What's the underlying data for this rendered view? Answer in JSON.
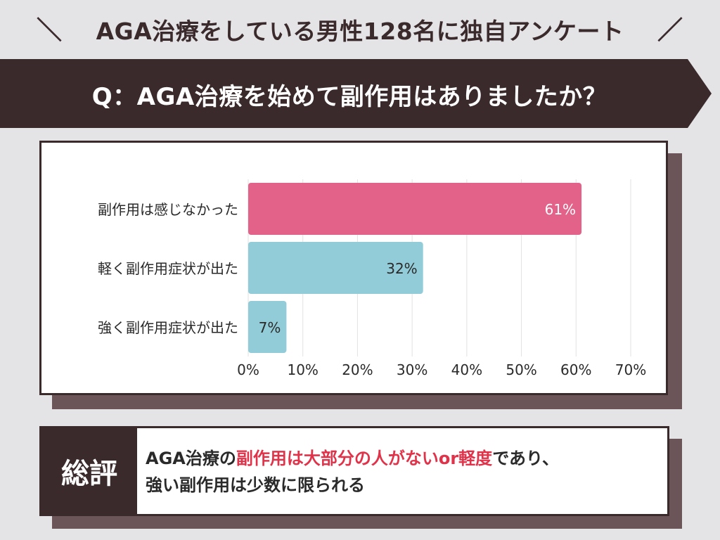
{
  "header": {
    "slash_left": "＼",
    "title": "AGA治療をしている男性128名に独自アンケート",
    "slash_right": "／"
  },
  "question": {
    "text": "Q：AGA治療を始めて副作用はありましたか？"
  },
  "chart_data": {
    "type": "bar",
    "orientation": "horizontal",
    "categories": [
      "副作用は感じなかった",
      "軽く副作用症状が出た",
      "強く副作用症状が出た"
    ],
    "values": [
      61,
      32,
      7
    ],
    "value_labels": [
      "61%",
      "32%",
      "7%"
    ],
    "bar_colors": [
      "#e2628a",
      "#92ccd8",
      "#92ccd8"
    ],
    "x_ticks": [
      "0%",
      "10%",
      "20%",
      "30%",
      "40%",
      "50%",
      "60%",
      "70%"
    ],
    "xlim": [
      0,
      70
    ],
    "grid": true,
    "title": "",
    "xlabel": "",
    "ylabel": ""
  },
  "summary": {
    "label": "総評",
    "line1_prefix": "AGA治療の",
    "line1_highlight": "副作用は大部分の人がないor軽度",
    "line1_suffix": "であり、",
    "line2": "強い副作用は少数に限られる"
  },
  "colors": {
    "dark": "#3a2a2c",
    "shadow": "#6b5558",
    "highlight": "#e0334a",
    "background": "#e4e3e6"
  }
}
